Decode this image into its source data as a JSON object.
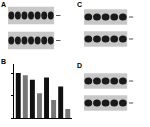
{
  "panel_labels": [
    "A",
    "B",
    "C",
    "D"
  ],
  "blots": [
    {
      "panel": "A",
      "lanes": 7,
      "rows": 2
    },
    {
      "panel": "C",
      "lanes": 5,
      "rows": 2
    },
    {
      "panel": "D",
      "lanes": 5,
      "rows": 2
    }
  ],
  "chart_data": {
    "type": "bar",
    "categories": [
      null,
      null,
      null,
      null,
      null,
      null,
      null,
      null
    ],
    "values": [
      1.0,
      0.95,
      0.85,
      0.55,
      0.9,
      0.4,
      0.7,
      0.2
    ],
    "colors": [
      "#111111",
      "#777777",
      "#111111",
      "#777777",
      "#111111",
      "#777777",
      "#111111",
      "#777777"
    ],
    "ylim": [
      0,
      1.2
    ],
    "yticks": [
      0,
      0.5,
      1
    ],
    "tick_labels": false,
    "grid": false
  }
}
